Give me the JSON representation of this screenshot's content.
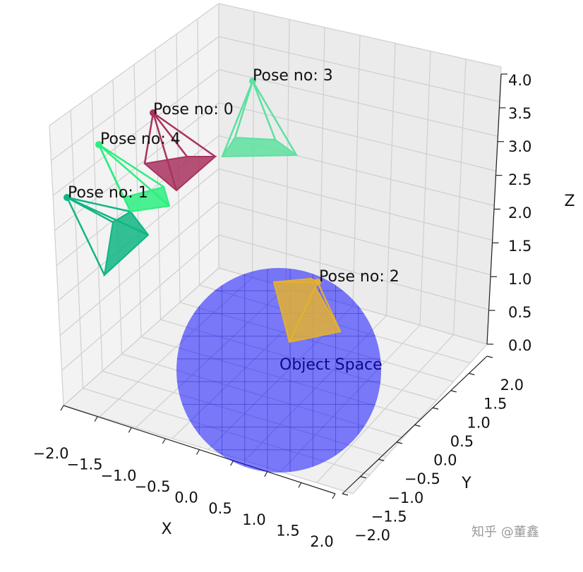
{
  "chart_data": {
    "type": "scatter",
    "projection": "3d",
    "grid": true,
    "xlabel": "X",
    "ylabel": "Y",
    "zlabel": "Z",
    "xlim": [
      -2.0,
      2.0
    ],
    "ylim": [
      -2.0,
      2.0
    ],
    "zlim": [
      0.0,
      4.0
    ],
    "x_ticks": [
      "−2.0",
      "−1.5",
      "−1.0",
      "−0.5",
      "0.0",
      "0.5",
      "1.0",
      "1.5",
      "2.0"
    ],
    "y_ticks": [
      "−2.0",
      "−1.5",
      "−1.0",
      "−0.5",
      "0.0",
      "0.5",
      "1.0",
      "1.5",
      "2.0"
    ],
    "z_ticks": [
      "0.0",
      "0.5",
      "1.0",
      "1.5",
      "2.0",
      "2.5",
      "3.0",
      "3.5",
      "4.0"
    ],
    "object_space": {
      "label": "Object Space",
      "color": "#0000ff",
      "radius": 1.0
    },
    "poses": [
      {
        "label": "Pose no: 0",
        "color": "#a8335f"
      },
      {
        "label": "Pose no: 1",
        "color": "#10b583"
      },
      {
        "label": "Pose no: 2",
        "color": "#e3b030"
      },
      {
        "label": "Pose no: 3",
        "color": "#5ee0a0"
      },
      {
        "label": "Pose no: 4",
        "color": "#2bef7f"
      }
    ]
  },
  "watermark": "知乎 @董鑫"
}
